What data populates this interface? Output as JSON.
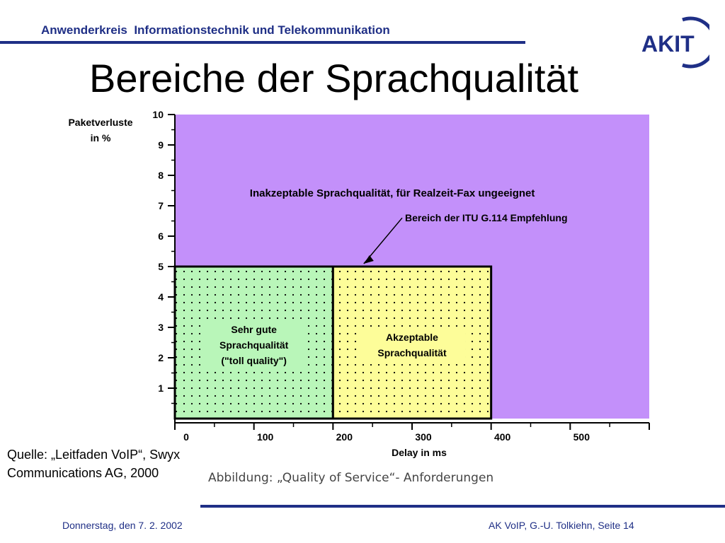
{
  "header": {
    "org_name": "Anwenderkreis  Informationstechnik und Telekommunikation",
    "logo_text": "AKIT"
  },
  "title": "Bereiche der Sprachqualität",
  "source_note": "Quelle: „Leitfaden VoIP“, Swyx Communications AG, 2000",
  "caption": "Abbildung: „Quality of Service“- Anforderungen",
  "footer": {
    "date": "Donnerstag, den 7. 2. 2002",
    "page_info": "AK VoIP, G.-U. Tolkiehn, Seite 14"
  },
  "colors": {
    "brand_blue": "#1f2f86",
    "unacceptable": "#c390fa",
    "very_good": "#b9f6b9",
    "acceptable": "#fdfd99"
  },
  "chart_data": {
    "type": "area",
    "ylabel": "Paketverluste in %",
    "ylabel_lines": [
      "Paketverluste",
      "in %"
    ],
    "xlabel": "Delay in ms",
    "xlim": [
      0,
      600
    ],
    "ylim": [
      0,
      10
    ],
    "x_ticks": [
      0,
      100,
      200,
      300,
      400,
      500
    ],
    "y_ticks": [
      1,
      2,
      3,
      4,
      5,
      6,
      7,
      8,
      9,
      10
    ],
    "regions": [
      {
        "name": "Inakzeptable Sprachqualität, für Realzeit-Fax ungeeignet",
        "x": [
          0,
          600
        ],
        "y": [
          0,
          10
        ],
        "color": "#c390fa",
        "pattern": "none"
      },
      {
        "name": "Sehr gute Sprachqualität (\"toll quality\")",
        "lines": [
          "Sehr gute",
          "Sprachqualität",
          "(\"toll quality\")"
        ],
        "x": [
          0,
          200
        ],
        "y": [
          0,
          5
        ],
        "color": "#b9f6b9",
        "pattern": "dots"
      },
      {
        "name": "Akzeptable Sprachqualität",
        "lines": [
          "Akzeptable",
          "Sprachqualität"
        ],
        "x": [
          200,
          400
        ],
        "y": [
          0,
          5
        ],
        "color": "#fdfd99",
        "pattern": "dots"
      }
    ],
    "annotations": [
      {
        "text": "Bereich der ITU G.114 Empfehlung",
        "points_to": {
          "x": 230,
          "y": 5
        }
      }
    ]
  }
}
